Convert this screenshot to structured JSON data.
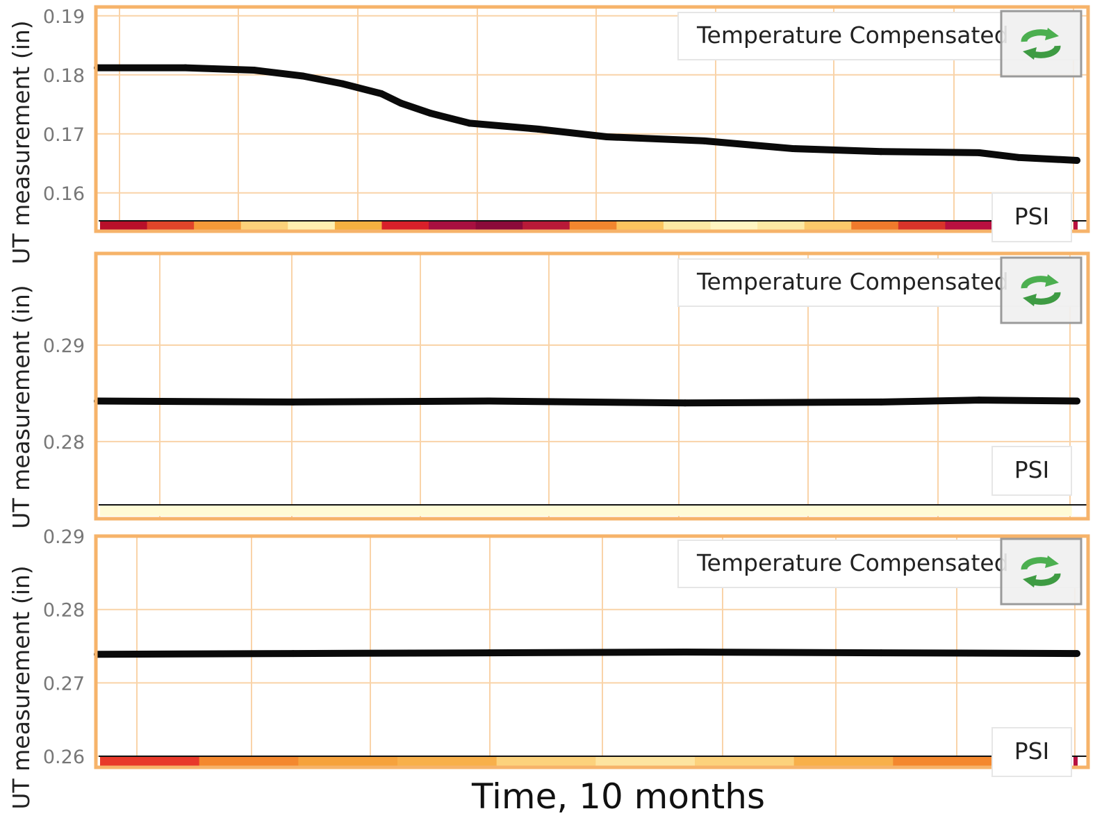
{
  "chart_data": [
    {
      "type": "line",
      "ylabel": "UT measurement (in)",
      "ylim": [
        0.1535,
        0.1915
      ],
      "yticks": [
        0.16,
        0.17,
        0.18,
        0.19
      ],
      "ytick_labels": [
        "0.16",
        "0.17",
        "0.18",
        "0.19"
      ],
      "legend": "Temperature Compensated",
      "secondary_label": "PSI",
      "grid": true,
      "x_range": [
        0,
        10
      ],
      "series": [
        {
          "x": [
            0,
            0.9,
            1.6,
            2.1,
            2.5,
            2.9,
            3.1,
            3.4,
            3.8,
            4.5,
            5.2,
            6.2,
            7.1,
            8.0,
            9.0,
            9.4,
            10.0
          ],
          "values": [
            0.1812,
            0.1812,
            0.1808,
            0.1798,
            0.1785,
            0.1768,
            0.1752,
            0.1735,
            0.1718,
            0.1708,
            0.1695,
            0.1688,
            0.1675,
            0.167,
            0.1668,
            0.166,
            0.1655
          ]
        }
      ],
      "psi_colors": [
        "#b8102a",
        "#e0452a",
        "#f59a38",
        "#fcd27a",
        "#fff0b0",
        "#f5b040",
        "#d8202a",
        "#a81040",
        "#8b0a3a",
        "#b81a38",
        "#f2862e",
        "#fbc45e",
        "#fde9a4",
        "#fff5c2",
        "#fde9a4",
        "#fbc96a",
        "#f07a2c",
        "#d9342a",
        "#b81040"
      ]
    },
    {
      "type": "line",
      "ylabel": "UT measurement (in)",
      "ylim": [
        0.272,
        0.2995
      ],
      "yticks": [
        0.28,
        0.29
      ],
      "ytick_labels": [
        "0.28",
        "0.29"
      ],
      "legend": "Temperature Compensated",
      "secondary_label": "PSI",
      "grid": true,
      "x_range": [
        0,
        10
      ],
      "series": [
        {
          "x": [
            0,
            2,
            4,
            6,
            8,
            9,
            10
          ],
          "values": [
            0.2842,
            0.2841,
            0.2842,
            0.284,
            0.2841,
            0.2843,
            0.2842
          ]
        }
      ],
      "psi_colors": [
        "#fffbd6",
        "#fffbd6"
      ]
    },
    {
      "type": "line",
      "ylabel": "UT measurement (in)",
      "ylim": [
        0.2585,
        0.29
      ],
      "yticks": [
        0.26,
        0.27,
        0.28,
        0.29
      ],
      "ytick_labels": [
        "0.26",
        "0.27",
        "0.28",
        "0.29"
      ],
      "legend": "Temperature Compensated",
      "secondary_label": "PSI",
      "grid": true,
      "x_range": [
        0,
        10
      ],
      "series": [
        {
          "x": [
            0,
            2,
            4,
            6,
            8,
            10
          ],
          "values": [
            0.2739,
            0.274,
            0.2741,
            0.2742,
            0.2741,
            0.274
          ]
        }
      ],
      "psi_colors": [
        "#e8392a",
        "#f4882e",
        "#f6a23c",
        "#f8b04a",
        "#fcd27c",
        "#fde4a0",
        "#fcd27c",
        "#f8b04a",
        "#f4882e"
      ]
    }
  ],
  "xlabel": "Time, 10 months"
}
